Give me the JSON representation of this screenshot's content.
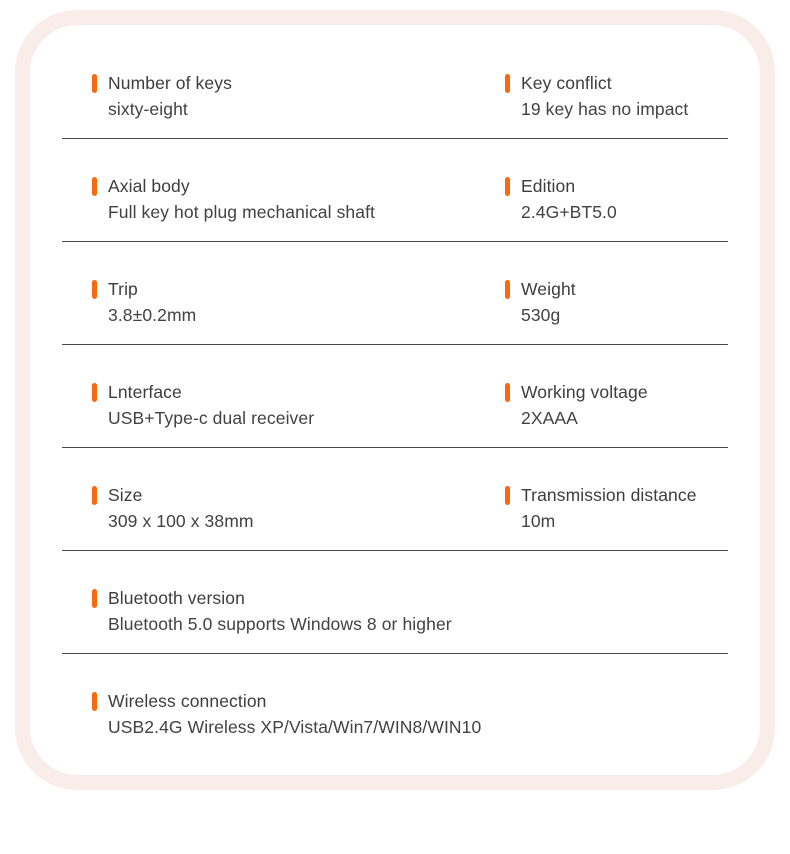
{
  "colors": {
    "accent_orange": "#f9690e",
    "frame_pink": "#f8ede9",
    "text_dark": "#3d3d3d",
    "divider": "#474747",
    "card_background": "#ffffff"
  },
  "specs": {
    "rows": [
      {
        "cells": [
          {
            "label": "Number of keys",
            "value": "sixty-eight"
          },
          {
            "label": "Key conflict",
            "value": "19 key has no impact"
          }
        ]
      },
      {
        "cells": [
          {
            "label": "Axial body",
            "value": "Full key hot plug mechanical shaft"
          },
          {
            "label": "Edition",
            "value": "2.4G+BT5.0"
          }
        ]
      },
      {
        "cells": [
          {
            "label": "Trip",
            "value": "3.8±0.2mm"
          },
          {
            "label": "Weight",
            "value": "530g"
          }
        ]
      },
      {
        "cells": [
          {
            "label": "Lnterface",
            "value": "USB+Type-c dual receiver"
          },
          {
            "label": "Working voltage",
            "value": "2XAAA"
          }
        ]
      },
      {
        "cells": [
          {
            "label": "Size",
            "value": "309 x 100 x 38mm"
          },
          {
            "label": "Transmission distance",
            "value": "10m"
          }
        ]
      },
      {
        "cells": [
          {
            "label": "Bluetooth version",
            "value": "Bluetooth 5.0 supports Windows 8 or higher"
          }
        ]
      },
      {
        "cells": [
          {
            "label": "Wireless connection",
            "value": "USB2.4G Wireless XP/Vista/Win7/WIN8/WIN10"
          }
        ]
      }
    ]
  }
}
